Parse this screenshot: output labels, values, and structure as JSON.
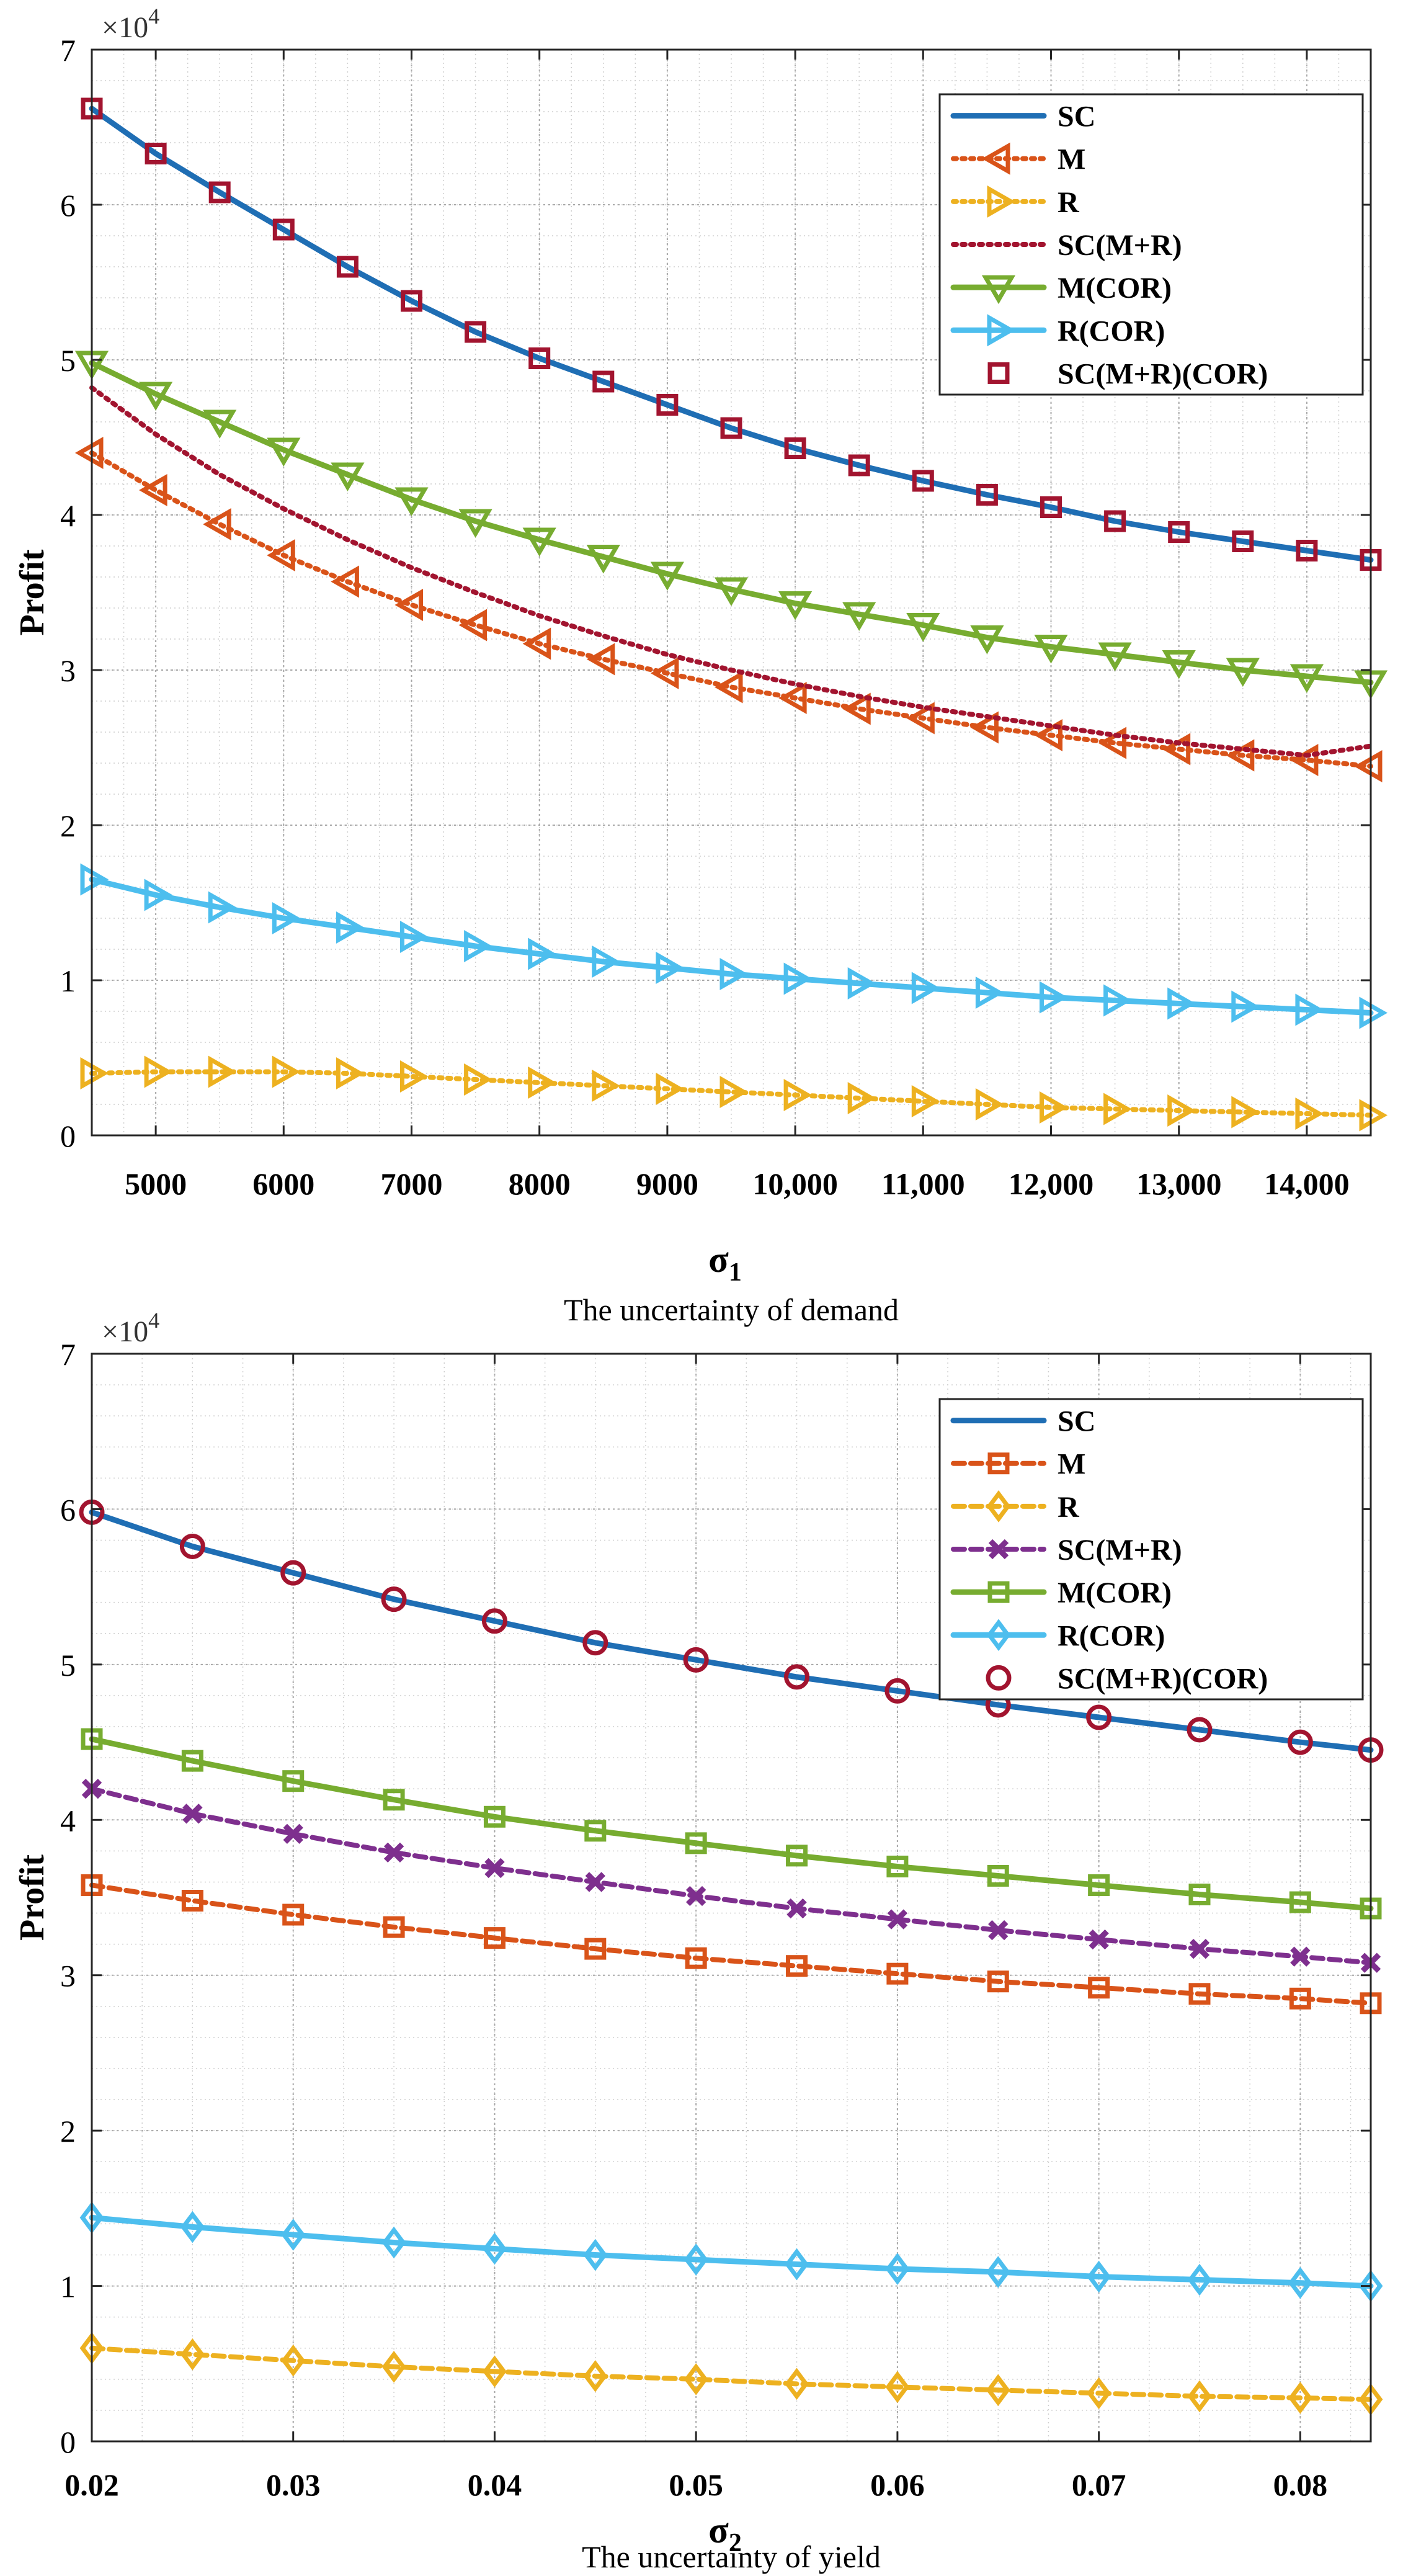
{
  "chart_data": [
    {
      "type": "line",
      "xlabel": "σ",
      "xlabel_sub": "1",
      "caption": "The uncertainty of demand",
      "ylabel": "Profit",
      "exponent_base": "×10",
      "exponent_power": "4",
      "xlim": [
        4500,
        14500
      ],
      "ylim": [
        0,
        7
      ],
      "grid": "on (major and minor, dotted)",
      "legend_position": "top-right",
      "x": [
        4500,
        5000,
        5500,
        6000,
        6500,
        7000,
        7500,
        8000,
        8500,
        9000,
        9500,
        10000,
        10500,
        11000,
        11500,
        12000,
        12500,
        13000,
        13500,
        14000,
        14500
      ],
      "x_ticks": [
        5000,
        6000,
        7000,
        8000,
        9000,
        10000,
        11000,
        12000,
        13000,
        14000
      ],
      "x_tick_labels": [
        "5000",
        "6000",
        "7000",
        "8000",
        "9000",
        "10,000",
        "11,000",
        "12,000",
        "13,000",
        "14,000"
      ],
      "y_ticks": [
        0,
        1,
        2,
        3,
        4,
        5,
        6,
        7
      ],
      "y_tick_labels": [
        "0",
        "1",
        "2",
        "3",
        "4",
        "5",
        "6",
        "7"
      ],
      "series": [
        {
          "name": "SC",
          "color": "#1f6eb4",
          "dash": "solid",
          "marker": "none",
          "values": [
            6.62,
            6.33,
            6.08,
            5.84,
            5.6,
            5.38,
            5.18,
            5.01,
            4.86,
            4.71,
            4.56,
            4.43,
            4.32,
            4.22,
            4.13,
            4.05,
            3.96,
            3.89,
            3.83,
            3.77,
            3.71
          ]
        },
        {
          "name": "M",
          "color": "#d95319",
          "dash": "dotted",
          "marker": "triangle-left",
          "values": [
            4.4,
            4.16,
            3.94,
            3.74,
            3.57,
            3.42,
            3.29,
            3.17,
            3.07,
            2.98,
            2.89,
            2.82,
            2.75,
            2.69,
            2.63,
            2.58,
            2.53,
            2.49,
            2.45,
            2.42,
            2.38
          ]
        },
        {
          "name": "R",
          "color": "#edb120",
          "dash": "dotted",
          "marker": "triangle-right",
          "values": [
            0.4,
            0.41,
            0.41,
            0.41,
            0.4,
            0.38,
            0.36,
            0.34,
            0.32,
            0.3,
            0.28,
            0.26,
            0.24,
            0.22,
            0.2,
            0.18,
            0.17,
            0.16,
            0.15,
            0.14,
            0.13
          ]
        },
        {
          "name": "SC(M+R)",
          "color": "#a2142f",
          "dash": "dotted",
          "marker": "none",
          "values": [
            4.82,
            4.52,
            4.26,
            4.04,
            3.84,
            3.66,
            3.5,
            3.35,
            3.22,
            3.1,
            3.0,
            2.91,
            2.83,
            2.76,
            2.7,
            2.64,
            2.58,
            2.53,
            2.49,
            2.45,
            2.51
          ]
        },
        {
          "name": "M(COR)",
          "color": "#77ac30",
          "dash": "solid",
          "marker": "triangle-down",
          "values": [
            4.98,
            4.78,
            4.6,
            4.42,
            4.26,
            4.1,
            3.96,
            3.84,
            3.73,
            3.62,
            3.52,
            3.43,
            3.36,
            3.29,
            3.21,
            3.15,
            3.1,
            3.05,
            3.0,
            2.96,
            2.92
          ]
        },
        {
          "name": "R(COR)",
          "color": "#4dbeee",
          "dash": "solid",
          "marker": "triangle-right",
          "values": [
            1.65,
            1.55,
            1.47,
            1.4,
            1.34,
            1.28,
            1.22,
            1.17,
            1.12,
            1.08,
            1.04,
            1.01,
            0.98,
            0.95,
            0.92,
            0.89,
            0.87,
            0.85,
            0.83,
            0.81,
            0.79
          ]
        },
        {
          "name": "SC(M+R)(COR)",
          "color": "#a2142f",
          "dash": "none",
          "marker": "square",
          "values": [
            6.62,
            6.33,
            6.08,
            5.84,
            5.6,
            5.38,
            5.18,
            5.01,
            4.86,
            4.71,
            4.56,
            4.43,
            4.32,
            4.22,
            4.13,
            4.05,
            3.96,
            3.89,
            3.83,
            3.77,
            3.71
          ]
        }
      ]
    },
    {
      "type": "line",
      "xlabel": "σ",
      "xlabel_sub": "2",
      "caption": "The uncertainty of yield",
      "ylabel": "Profit",
      "exponent_base": "×10",
      "exponent_power": "4",
      "xlim": [
        0.02,
        0.0835
      ],
      "ylim": [
        0,
        7
      ],
      "grid": "on (major and minor, dotted)",
      "legend_position": "top-right",
      "x": [
        0.02,
        0.025,
        0.03,
        0.035,
        0.04,
        0.045,
        0.05,
        0.055,
        0.06,
        0.065,
        0.07,
        0.075,
        0.08,
        0.0835
      ],
      "x_ticks": [
        0.02,
        0.03,
        0.04,
        0.05,
        0.06,
        0.07,
        0.08
      ],
      "x_tick_labels": [
        "0.02",
        "0.03",
        "0.04",
        "0.05",
        "0.06",
        "0.07",
        "0.08"
      ],
      "y_ticks": [
        0,
        1,
        2,
        3,
        4,
        5,
        6,
        7
      ],
      "y_tick_labels": [
        "0",
        "1",
        "2",
        "3",
        "4",
        "5",
        "6",
        "7"
      ],
      "series": [
        {
          "name": "SC",
          "color": "#1f6eb4",
          "dash": "solid",
          "marker": "none",
          "values": [
            5.98,
            5.76,
            5.59,
            5.42,
            5.28,
            5.14,
            5.03,
            4.92,
            4.83,
            4.74,
            4.66,
            4.58,
            4.5,
            4.45
          ]
        },
        {
          "name": "M",
          "color": "#d95319",
          "dash": "dashed",
          "marker": "square",
          "values": [
            3.58,
            3.48,
            3.39,
            3.31,
            3.24,
            3.17,
            3.11,
            3.06,
            3.01,
            2.96,
            2.92,
            2.88,
            2.85,
            2.82
          ]
        },
        {
          "name": "R",
          "color": "#edb120",
          "dash": "dashed",
          "marker": "diamond",
          "values": [
            0.6,
            0.56,
            0.52,
            0.48,
            0.45,
            0.42,
            0.4,
            0.37,
            0.35,
            0.33,
            0.31,
            0.29,
            0.28,
            0.27
          ]
        },
        {
          "name": "SC(M+R)",
          "color": "#7e2f8e",
          "dash": "dashed",
          "marker": "x",
          "values": [
            4.2,
            4.04,
            3.91,
            3.79,
            3.69,
            3.6,
            3.51,
            3.43,
            3.36,
            3.29,
            3.23,
            3.17,
            3.12,
            3.08
          ]
        },
        {
          "name": "M(COR)",
          "color": "#77ac30",
          "dash": "solid",
          "marker": "square",
          "values": [
            4.52,
            4.38,
            4.25,
            4.13,
            4.02,
            3.93,
            3.85,
            3.77,
            3.7,
            3.64,
            3.58,
            3.52,
            3.47,
            3.43
          ]
        },
        {
          "name": "R(COR)",
          "color": "#4dbeee",
          "dash": "solid",
          "marker": "diamond",
          "values": [
            1.44,
            1.38,
            1.33,
            1.28,
            1.24,
            1.2,
            1.17,
            1.14,
            1.11,
            1.09,
            1.06,
            1.04,
            1.02,
            1.0
          ]
        },
        {
          "name": "SC(M+R)(COR)",
          "color": "#a2142f",
          "dash": "none",
          "marker": "circle",
          "values": [
            5.98,
            5.76,
            5.59,
            5.42,
            5.28,
            5.14,
            5.03,
            4.92,
            4.83,
            4.74,
            4.66,
            4.58,
            4.5,
            4.45
          ]
        }
      ]
    }
  ]
}
